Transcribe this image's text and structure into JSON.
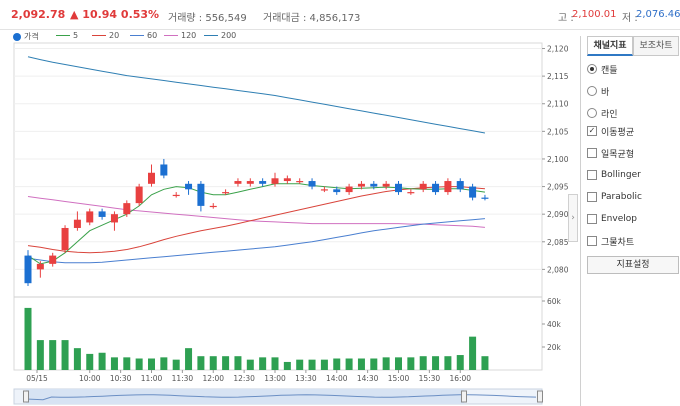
{
  "header": {
    "price": "2,092.78",
    "change": "▲ 10.94 0.53%",
    "volume_label": "거래량 : 556,549",
    "amount_label": "거래대금 : 4,856,173",
    "high_label": "고 : ",
    "high_value": "2,100.01",
    "low_label": "저 : ",
    "low_value": "2,076.46"
  },
  "legend": {
    "price": "가격",
    "ma5": "5",
    "ma20": "20",
    "ma60": "60",
    "ma120": "120",
    "ma200": "200"
  },
  "colors": {
    "up": "#e84040",
    "down": "#1b6fd1",
    "ma5": "#3aa14a",
    "ma20": "#d9443b",
    "ma60": "#4a7fd0",
    "ma120": "#d070c0",
    "ma200": "#2f7fb3",
    "volume": "#2ea052"
  },
  "chart_data": {
    "type": "candlestick",
    "y_ticks": [
      "2,120",
      "2,115",
      "2,110",
      "2,105",
      "2,100",
      "2,095",
      "2,090",
      "2,085",
      "2,080"
    ],
    "ylim": [
      2075,
      2121
    ],
    "x_ticks": [
      "05/15",
      "10:00",
      "10:30",
      "11:00",
      "11:30",
      "12:00",
      "12:30",
      "13:00",
      "13:30",
      "14:00",
      "14:30",
      "15:00",
      "15:30",
      "16:00"
    ],
    "candles": [
      {
        "o": 2082.5,
        "c": 2077.5,
        "h": 2083.5,
        "l": 2077.0
      },
      {
        "o": 2080.0,
        "c": 2081.0,
        "h": 2081.5,
        "l": 2078.5
      },
      {
        "o": 2081.0,
        "c": 2082.5,
        "h": 2083.0,
        "l": 2080.5
      },
      {
        "o": 2083.5,
        "c": 2087.5,
        "h": 2088.0,
        "l": 2083.0
      },
      {
        "o": 2087.5,
        "c": 2089.0,
        "h": 2090.5,
        "l": 2087.0
      },
      {
        "o": 2088.5,
        "c": 2090.5,
        "h": 2091.0,
        "l": 2088.0
      },
      {
        "o": 2090.5,
        "c": 2089.5,
        "h": 2091.0,
        "l": 2089.0
      },
      {
        "o": 2088.5,
        "c": 2090.0,
        "h": 2090.5,
        "l": 2087.0
      },
      {
        "o": 2090.0,
        "c": 2092.0,
        "h": 2092.5,
        "l": 2089.5
      },
      {
        "o": 2092.0,
        "c": 2095.0,
        "h": 2095.5,
        "l": 2091.5
      },
      {
        "o": 2095.5,
        "c": 2097.5,
        "h": 2099.0,
        "l": 2095.0
      },
      {
        "o": 2099.0,
        "c": 2097.0,
        "h": 2100.0,
        "l": 2096.5
      },
      {
        "o": 2093.5,
        "c": 2093.5,
        "h": 2094.0,
        "l": 2093.0
      },
      {
        "o": 2095.5,
        "c": 2094.5,
        "h": 2096.0,
        "l": 2093.5
      },
      {
        "o": 2095.5,
        "c": 2091.5,
        "h": 2096.0,
        "l": 2090.5
      },
      {
        "o": 2091.5,
        "c": 2091.5,
        "h": 2092.0,
        "l": 2091.0
      },
      {
        "o": 2094.0,
        "c": 2094.0,
        "h": 2094.5,
        "l": 2093.5
      },
      {
        "o": 2095.5,
        "c": 2096.0,
        "h": 2096.5,
        "l": 2095.0
      },
      {
        "o": 2095.5,
        "c": 2096.0,
        "h": 2096.5,
        "l": 2095.0
      },
      {
        "o": 2096.0,
        "c": 2095.5,
        "h": 2096.5,
        "l": 2095.0
      },
      {
        "o": 2095.5,
        "c": 2096.5,
        "h": 2097.5,
        "l": 2095.0
      },
      {
        "o": 2096.0,
        "c": 2096.5,
        "h": 2097.0,
        "l": 2095.5
      },
      {
        "o": 2096.0,
        "c": 2096.0,
        "h": 2096.5,
        "l": 2095.5
      },
      {
        "o": 2096.0,
        "c": 2095.0,
        "h": 2096.5,
        "l": 2094.5
      },
      {
        "o": 2094.5,
        "c": 2094.5,
        "h": 2095.0,
        "l": 2094.0
      },
      {
        "o": 2094.5,
        "c": 2094.0,
        "h": 2095.0,
        "l": 2093.5
      },
      {
        "o": 2094.0,
        "c": 2095.0,
        "h": 2095.5,
        "l": 2093.5
      },
      {
        "o": 2095.0,
        "c": 2095.5,
        "h": 2096.0,
        "l": 2094.5
      },
      {
        "o": 2095.5,
        "c": 2095.0,
        "h": 2096.0,
        "l": 2094.5
      },
      {
        "o": 2095.0,
        "c": 2095.5,
        "h": 2096.0,
        "l": 2094.5
      },
      {
        "o": 2095.5,
        "c": 2094.0,
        "h": 2096.0,
        "l": 2093.5
      },
      {
        "o": 2094.0,
        "c": 2094.0,
        "h": 2094.5,
        "l": 2093.5
      },
      {
        "o": 2094.5,
        "c": 2095.5,
        "h": 2096.0,
        "l": 2094.0
      },
      {
        "o": 2095.5,
        "c": 2094.0,
        "h": 2096.0,
        "l": 2093.5
      },
      {
        "o": 2094.0,
        "c": 2096.0,
        "h": 2096.5,
        "l": 2093.5
      },
      {
        "o": 2096.0,
        "c": 2094.5,
        "h": 2096.5,
        "l": 2094.0
      },
      {
        "o": 2095.0,
        "c": 2093.0,
        "h": 2095.5,
        "l": 2092.5
      },
      {
        "o": 2093.0,
        "c": 2092.8,
        "h": 2093.5,
        "l": 2092.5
      }
    ],
    "ma5": [
      2082.5,
      2081.0,
      2081.5,
      2083.0,
      2085.0,
      2087.0,
      2088.0,
      2089.0,
      2090.0,
      2091.5,
      2093.5,
      2094.5,
      2095.0,
      2094.8,
      2094.0,
      2093.5,
      2093.5,
      2094.0,
      2094.5,
      2095.0,
      2095.5,
      2095.5,
      2095.5,
      2095.2,
      2095.0,
      2094.8,
      2094.6,
      2094.7,
      2094.8,
      2094.9,
      2094.8,
      2094.6,
      2094.5,
      2094.5,
      2094.6,
      2094.6,
      2094.3,
      2094.0
    ],
    "ma20": [
      2084.3,
      2084.0,
      2083.6,
      2083.3,
      2083.1,
      2083.0,
      2083.1,
      2083.3,
      2083.6,
      2084.1,
      2084.7,
      2085.4,
      2086.0,
      2086.5,
      2087.0,
      2087.4,
      2087.8,
      2088.3,
      2088.8,
      2089.3,
      2089.8,
      2090.3,
      2090.8,
      2091.3,
      2091.8,
      2092.3,
      2092.8,
      2093.3,
      2093.7,
      2094.1,
      2094.4,
      2094.6,
      2094.8,
      2094.9,
      2095.0,
      2095.0,
      2094.8,
      2094.6
    ],
    "ma60": [
      2082.0,
      2081.7,
      2081.4,
      2081.2,
      2081.2,
      2081.2,
      2081.3,
      2081.5,
      2081.7,
      2081.9,
      2082.1,
      2082.3,
      2082.5,
      2082.7,
      2082.9,
      2083.1,
      2083.3,
      2083.5,
      2083.7,
      2083.9,
      2084.1,
      2084.4,
      2084.7,
      2085.0,
      2085.4,
      2085.8,
      2086.2,
      2086.6,
      2087.0,
      2087.3,
      2087.6,
      2087.9,
      2088.2,
      2088.4,
      2088.6,
      2088.8,
      2089.0,
      2089.2
    ],
    "ma120": [
      2093.2,
      2092.9,
      2092.6,
      2092.3,
      2092.0,
      2091.7,
      2091.4,
      2091.1,
      2090.8,
      2090.6,
      2090.4,
      2090.2,
      2090.0,
      2089.8,
      2089.6,
      2089.4,
      2089.2,
      2089.0,
      2088.8,
      2088.7,
      2088.6,
      2088.5,
      2088.4,
      2088.3,
      2088.3,
      2088.3,
      2088.3,
      2088.3,
      2088.3,
      2088.3,
      2088.3,
      2088.2,
      2088.2,
      2088.1,
      2088.0,
      2087.9,
      2087.8,
      2087.6
    ],
    "ma200": [
      2118.5,
      2118.0,
      2117.5,
      2117.1,
      2116.7,
      2116.3,
      2115.9,
      2115.5,
      2115.1,
      2114.8,
      2114.5,
      2114.2,
      2113.9,
      2113.6,
      2113.3,
      2113.0,
      2112.7,
      2112.4,
      2112.1,
      2111.8,
      2111.5,
      2111.1,
      2110.7,
      2110.3,
      2109.9,
      2109.5,
      2109.1,
      2108.7,
      2108.3,
      2107.9,
      2107.5,
      2107.1,
      2106.7,
      2106.3,
      2105.9,
      2105.5,
      2105.1,
      2104.7
    ],
    "volume_ticks": [
      "60k",
      "40k",
      "20k"
    ],
    "volume_max": 60000,
    "volume": [
      54000,
      26000,
      26000,
      26000,
      19000,
      14000,
      15000,
      11000,
      11000,
      10000,
      10000,
      11000,
      9000,
      19000,
      12000,
      12000,
      12000,
      12000,
      9000,
      11000,
      11000,
      7000,
      9000,
      9000,
      9000,
      10000,
      10000,
      10000,
      10000,
      11000,
      11000,
      11000,
      12000,
      12000,
      12000,
      13000,
      29000,
      12000
    ]
  },
  "panel": {
    "tab_main": "채널지표",
    "tab_sub": "보조차트",
    "radio": [
      "캔들",
      "바",
      "라인"
    ],
    "radio_selected": 0,
    "checks": [
      "이동평균",
      "일목균형",
      "Bollinger",
      "Parabolic",
      "Envelop",
      "그물차트"
    ],
    "checked": [
      true,
      false,
      false,
      false,
      false,
      false
    ],
    "settings_button": "지표설정",
    "collapse": "›"
  }
}
